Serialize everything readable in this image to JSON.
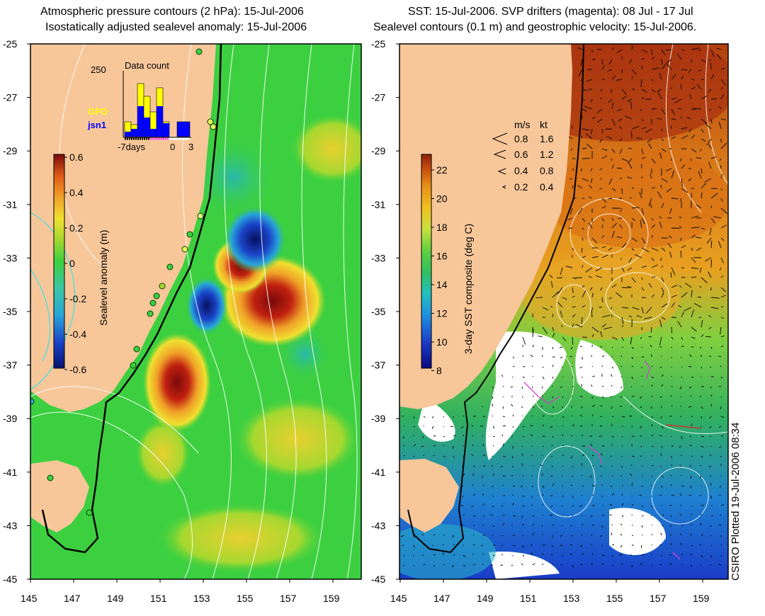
{
  "left_panel": {
    "title_line1": "Atmospheric pressure contours (2 hPa): 15-Jul-2006",
    "title_line2": "Isostatically adjusted sealevel anomaly: 15-Jul-2006",
    "colorbar": {
      "label": "Sealevel anomaly (m)",
      "ticks": [
        "0.6",
        "0.4",
        "0.2",
        "0",
        "-0.2",
        "-0.4",
        "-0.6"
      ],
      "colors": [
        "#08136e",
        "#1a43c8",
        "#28a6d8",
        "#3cc6a0",
        "#3cd040",
        "#a6d830",
        "#f0e030",
        "#f0a028",
        "#e05a18",
        "#a81010",
        "#7a0a0a"
      ]
    },
    "inset": {
      "title": "Data count",
      "ymax_label": "250",
      "x_labels": [
        "-7days",
        "0",
        "3"
      ],
      "legend": [
        {
          "name": "GFO",
          "color": "#ffff00"
        },
        {
          "name": "jsn1",
          "color": "#0000ff"
        }
      ]
    }
  },
  "right_panel": {
    "title_line1": "SST: 15-Jul-2006. SVP drifters (magenta): 08 Jul - 17 Jul",
    "title_line2": "Sealevel contours (0.1 m) and geostrophic velocity: 15-Jul-2006.",
    "colorbar": {
      "label": "3-day SST composite (deg C)",
      "ticks": [
        "22",
        "20",
        "18",
        "16",
        "14",
        "12",
        "10",
        "8"
      ],
      "colors": [
        "#0a0a80",
        "#1a3cc8",
        "#1e90e0",
        "#22c0c0",
        "#30c060",
        "#60d040",
        "#c8e040",
        "#f0c020",
        "#e89018",
        "#c85010",
        "#902008"
      ]
    },
    "velocity_legend": {
      "headers": [
        "m/s",
        "kt"
      ],
      "rows": [
        {
          "ms": "0.8",
          "kt": "1.6"
        },
        {
          "ms": "0.6",
          "kt": "1.2"
        },
        {
          "ms": "0.4",
          "kt": "0.8"
        },
        {
          "ms": "0.2",
          "kt": "0.4"
        }
      ]
    }
  },
  "axes": {
    "lat_ticks": [
      "-25",
      "-27",
      "-29",
      "-31",
      "-33",
      "-35",
      "-37",
      "-39",
      "-41",
      "-43",
      "-45"
    ],
    "lon_ticks": [
      "145",
      "147",
      "149",
      "151",
      "153",
      "155",
      "157",
      "159"
    ]
  },
  "credit": "CSIRO Plotted 19-Jul-2006 08:34",
  "colors": {
    "land": "#f7c79a",
    "ocean_base": "#3cd040",
    "contour": "#ffffff",
    "shelf": "#000000"
  }
}
